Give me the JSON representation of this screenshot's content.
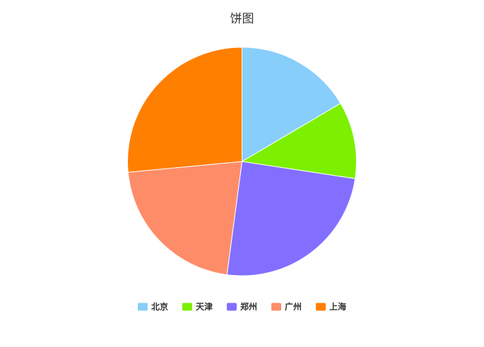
{
  "chart_data": {
    "type": "pie",
    "title": "饼图",
    "categories": [
      "北京",
      "天津",
      "郑州",
      "广州",
      "上海"
    ],
    "values": [
      16.5,
      10.9,
      24.7,
      21.4,
      26.5
    ],
    "colors": [
      "#87cefa",
      "#7cf000",
      "#836fff",
      "#ff8c69",
      "#ff7f00"
    ],
    "legend_position": "bottom"
  }
}
